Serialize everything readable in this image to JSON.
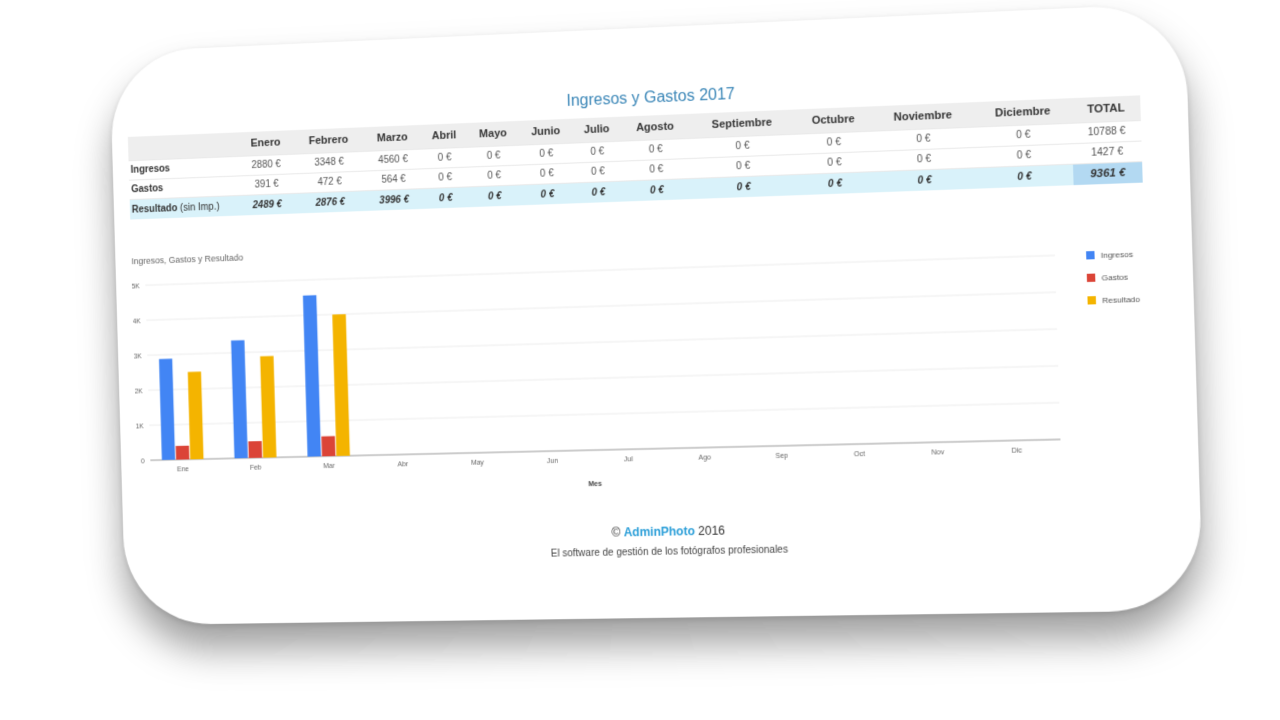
{
  "page_title": "Ingresos y Gastos 2017",
  "table": {
    "columns": [
      "Enero",
      "Febrero",
      "Marzo",
      "Abril",
      "Mayo",
      "Junio",
      "Julio",
      "Agosto",
      "Septiembre",
      "Octubre",
      "Noviembre",
      "Diciembre",
      "TOTAL"
    ],
    "rows": [
      {
        "label": "Ingresos",
        "sub": "",
        "cells": [
          "2880 €",
          "3348 €",
          "4560 €",
          "0 €",
          "0 €",
          "0 €",
          "0 €",
          "0 €",
          "0 €",
          "0 €",
          "0 €",
          "0 €",
          "10788 €"
        ]
      },
      {
        "label": "Gastos",
        "sub": "",
        "cells": [
          "391 €",
          "472 €",
          "564 €",
          "0 €",
          "0 €",
          "0 €",
          "0 €",
          "0 €",
          "0 €",
          "0 €",
          "0 €",
          "0 €",
          "1427 €"
        ]
      },
      {
        "label": "Resultado",
        "sub": " (sin Imp.)",
        "cells": [
          "2489 €",
          "2876 €",
          "3996 €",
          "0 €",
          "0 €",
          "0 €",
          "0 €",
          "0 €",
          "0 €",
          "0 €",
          "0 €",
          "0 €",
          "9361 €"
        ]
      }
    ]
  },
  "chart_data": {
    "type": "bar",
    "title": "Ingresos, Gastos y Resultado",
    "xlabel": "Mes",
    "ylabel": "",
    "categories": [
      "Ene",
      "Feb",
      "Mar",
      "Abr",
      "May",
      "Jun",
      "Jul",
      "Ago",
      "Sep",
      "Oct",
      "Nov",
      "Dic"
    ],
    "series": [
      {
        "name": "Ingresos",
        "color": "#4285f4",
        "values": [
          2880,
          3348,
          4560,
          0,
          0,
          0,
          0,
          0,
          0,
          0,
          0,
          0
        ]
      },
      {
        "name": "Gastos",
        "color": "#db4437",
        "values": [
          391,
          472,
          564,
          0,
          0,
          0,
          0,
          0,
          0,
          0,
          0,
          0
        ]
      },
      {
        "name": "Resultado",
        "color": "#f4b400",
        "values": [
          2489,
          2876,
          3996,
          0,
          0,
          0,
          0,
          0,
          0,
          0,
          0,
          0
        ]
      }
    ],
    "yticks": [
      0,
      1000,
      2000,
      3000,
      4000,
      5000
    ],
    "ytick_labels": [
      "0",
      "1K",
      "2K",
      "3K",
      "4K",
      "5K"
    ],
    "ylim": [
      0,
      5000
    ],
    "grid": true,
    "legend": "right"
  },
  "footer": {
    "copyright_symbol": "©",
    "brand": "AdminPhoto",
    "year": "2016",
    "tagline": "El software de gestión de los fotógrafos profesionales"
  }
}
